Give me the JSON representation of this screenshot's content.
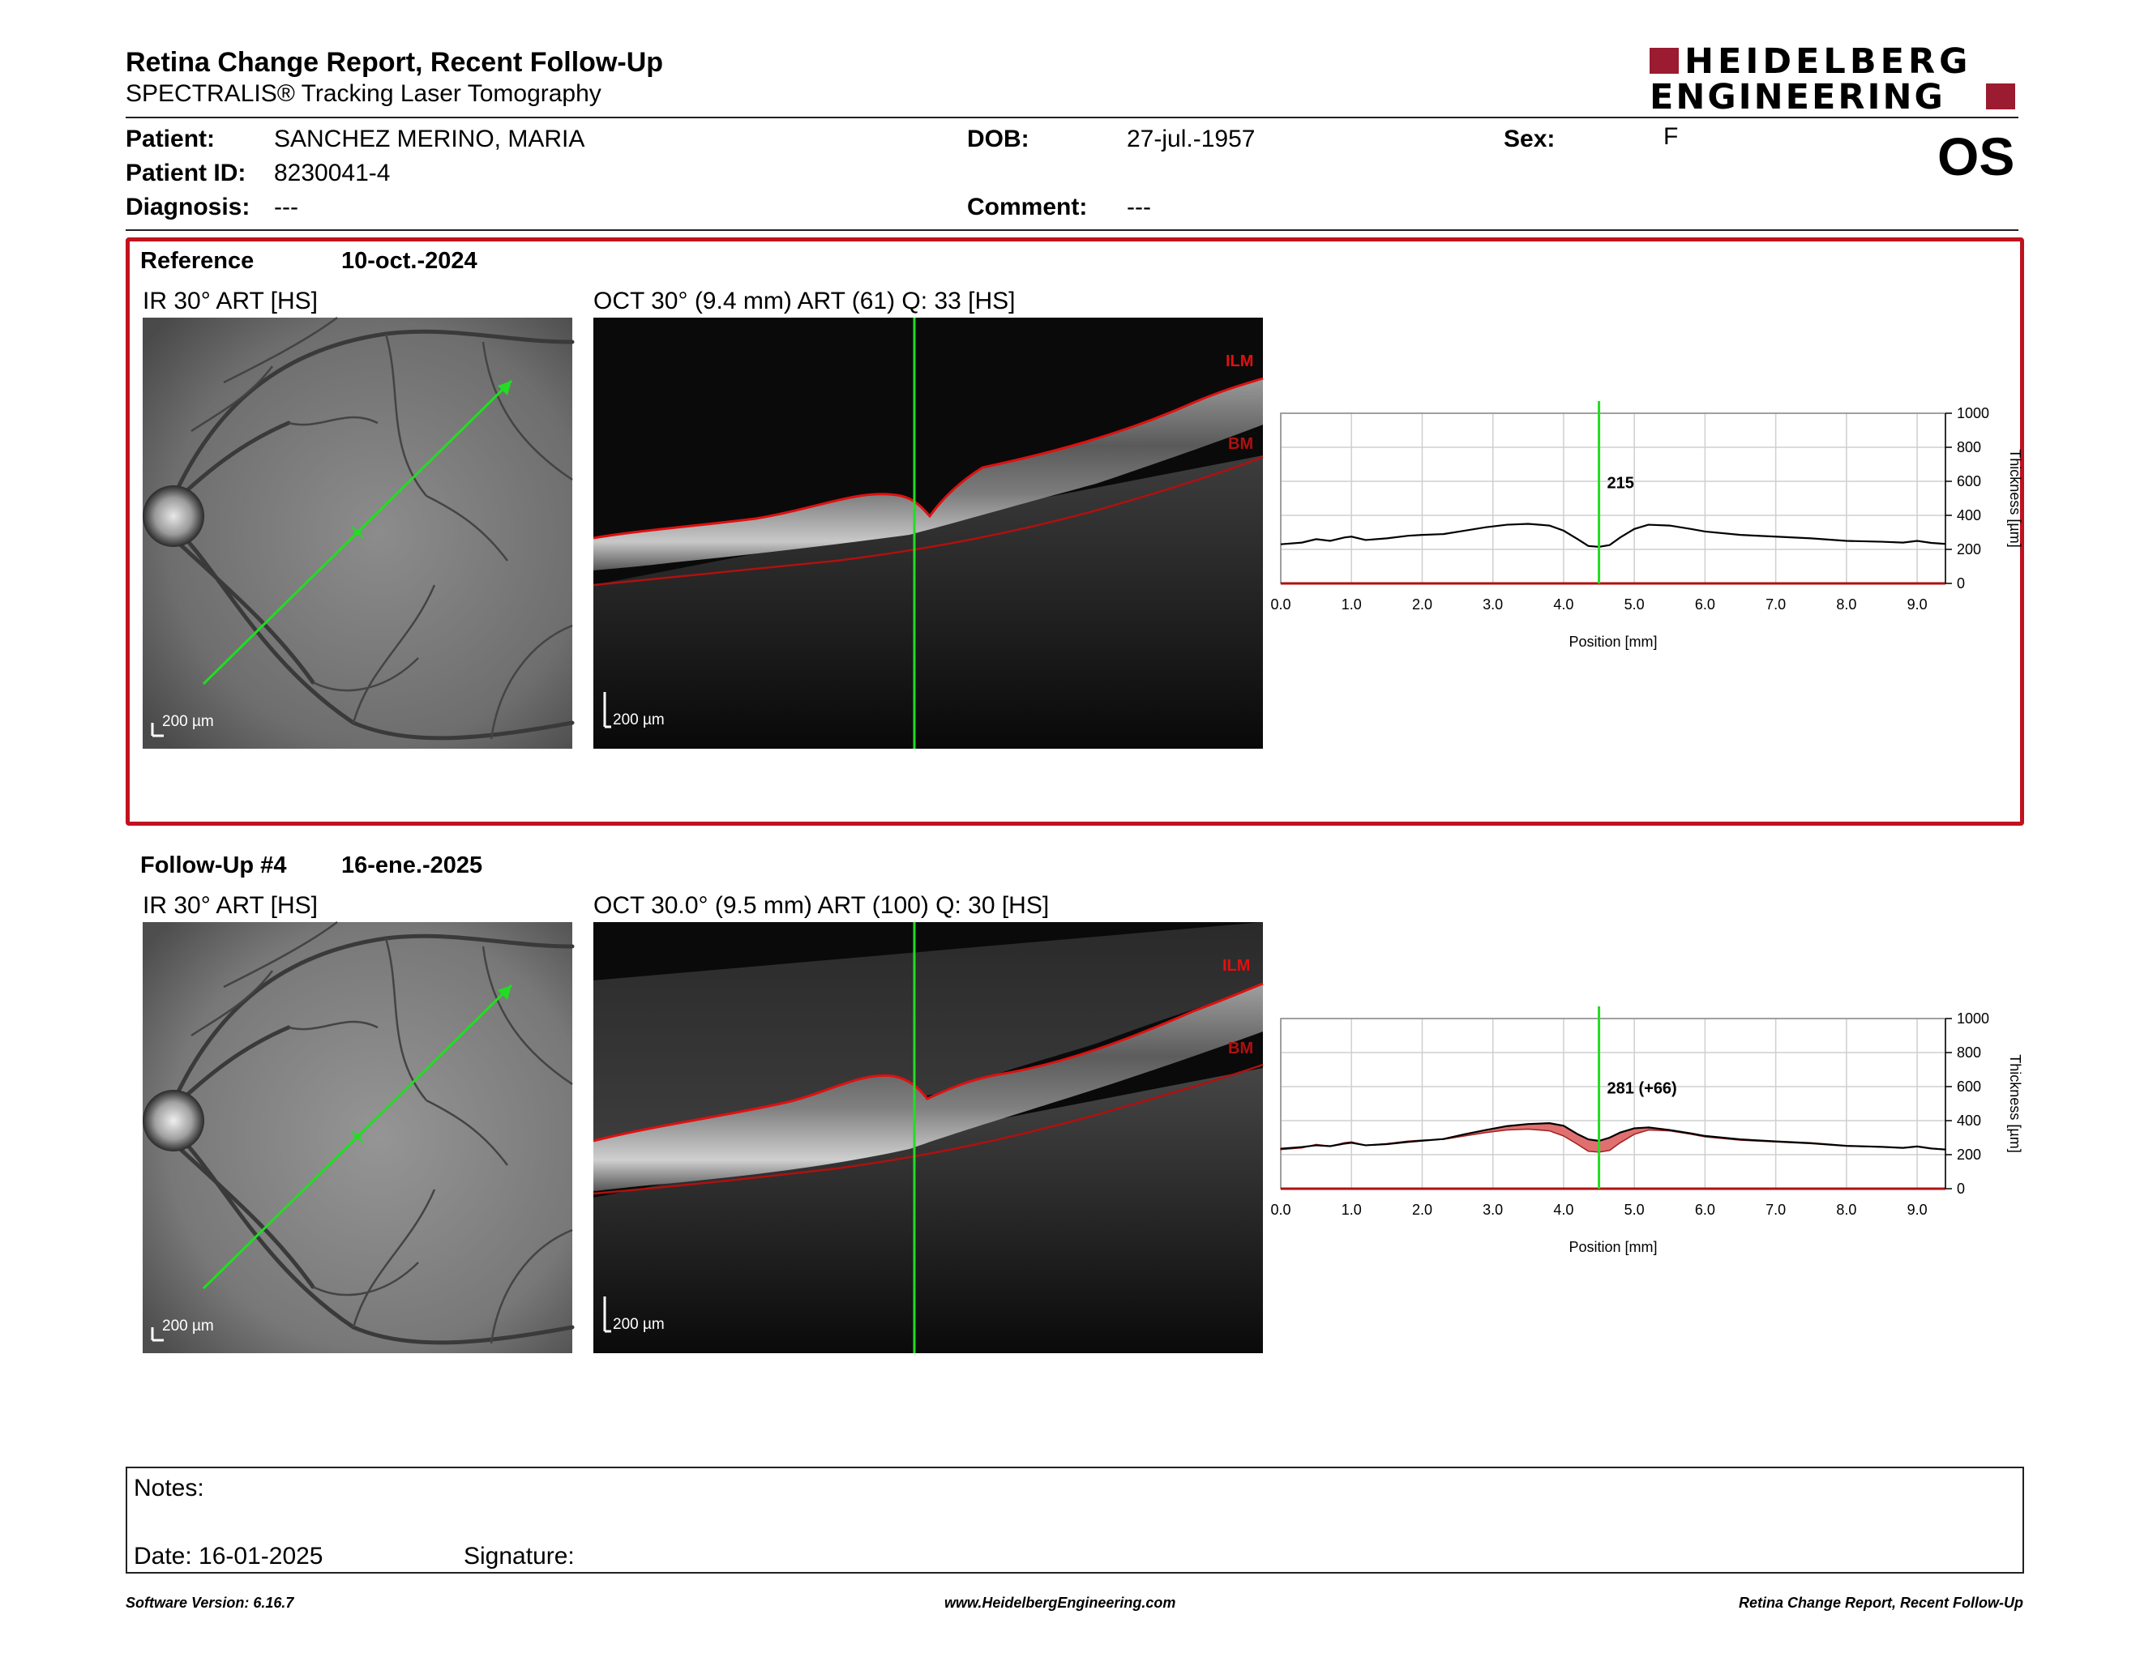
{
  "report": {
    "title": "Retina Change Report, Recent Follow-Up",
    "subtitle": "SPECTRALIS® Tracking Laser Tomography",
    "logo_line1": "HEIDELBERG",
    "logo_line2": "ENGINEERING",
    "eye": "OS"
  },
  "patient": {
    "patient_label": "Patient:",
    "patient_name": "SANCHEZ MERINO, MARIA",
    "id_label": "Patient ID:",
    "id_value": "8230041-4",
    "diagnosis_label": "Diagnosis:",
    "diagnosis_value": "---",
    "dob_label": "DOB:",
    "dob_value": "27-jul.-1957",
    "comment_label": "Comment:",
    "comment_value": "---",
    "sex_label": "Sex:",
    "sex_value": "F"
  },
  "reference": {
    "label": "Reference",
    "date": "10-oct.-2024",
    "ir_title": "IR 30° ART [HS]",
    "oct_title": "OCT 30° (9.4 mm) ART (61) Q: 33 [HS]",
    "ir_scale": "200 µm",
    "oct_scale": "200 µm",
    "ilm": "ILM",
    "bm": "BM"
  },
  "followup": {
    "label": "Follow-Up #4",
    "date": "16-ene.-2025",
    "ir_title": "IR 30° ART [HS]",
    "oct_title": "OCT 30.0° (9.5 mm) ART (100) Q: 30 [HS]",
    "ir_scale": "200 µm",
    "oct_scale": "200 µm",
    "ilm": "ILM",
    "bm": "BM"
  },
  "notes": {
    "notes_label": "Notes:",
    "date_label": "Date: 16-01-2025",
    "signature_label": "Signature:"
  },
  "footer": {
    "software": "Software Version: 6.16.7",
    "website": "www.HeidelbergEngineering.com",
    "report_name": "Retina Change Report, Recent Follow-Up"
  },
  "colors": {
    "brand": "#9b1b30",
    "frame": "#c1121f",
    "ilm_line": "#e01010",
    "bm_line": "#b01010",
    "scan_line": "#22dd22",
    "change_fill": "#e07070"
  },
  "chart_data": [
    {
      "type": "line",
      "name": "reference-thickness",
      "x": [
        0.0,
        0.3,
        0.5,
        0.7,
        0.9,
        1.0,
        1.2,
        1.5,
        1.8,
        2.0,
        2.3,
        2.6,
        2.9,
        3.2,
        3.5,
        3.8,
        4.0,
        4.2,
        4.35,
        4.5,
        4.65,
        4.8,
        5.0,
        5.2,
        5.5,
        5.8,
        6.0,
        6.5,
        7.0,
        7.5,
        8.0,
        8.5,
        8.8,
        9.0,
        9.2,
        9.4
      ],
      "values": [
        230,
        240,
        260,
        250,
        270,
        275,
        255,
        265,
        280,
        285,
        290,
        310,
        330,
        345,
        350,
        340,
        310,
        260,
        220,
        215,
        225,
        270,
        320,
        345,
        340,
        320,
        305,
        285,
        275,
        265,
        250,
        245,
        240,
        250,
        238,
        232
      ],
      "marker_x": 4.5,
      "marker_label": "215",
      "xlabel": "Position [mm]",
      "ylabel": "Thickness [µm]",
      "xlim": [
        0,
        9.4
      ],
      "ylim": [
        0,
        1000
      ],
      "xticks": [
        "0.0",
        "1.0",
        "2.0",
        "3.0",
        "4.0",
        "5.0",
        "6.0",
        "7.0",
        "8.0",
        "9.0"
      ],
      "yticks": [
        "0",
        "200",
        "400",
        "600",
        "800",
        "1000"
      ],
      "grid": true
    },
    {
      "type": "area",
      "name": "followup-thickness",
      "x": [
        0.0,
        0.3,
        0.5,
        0.7,
        0.9,
        1.0,
        1.2,
        1.5,
        1.8,
        2.0,
        2.3,
        2.6,
        2.9,
        3.2,
        3.5,
        3.8,
        4.0,
        4.2,
        4.35,
        4.5,
        4.65,
        4.8,
        5.0,
        5.2,
        5.5,
        5.8,
        6.0,
        6.5,
        7.0,
        7.5,
        8.0,
        8.5,
        8.8,
        9.0,
        9.2,
        9.4
      ],
      "values": [
        235,
        245,
        255,
        250,
        265,
        270,
        255,
        262,
        275,
        282,
        292,
        320,
        345,
        368,
        380,
        385,
        370,
        320,
        290,
        281,
        300,
        330,
        355,
        360,
        345,
        325,
        310,
        290,
        278,
        268,
        252,
        246,
        240,
        248,
        236,
        230
      ],
      "baseline": [
        230,
        240,
        260,
        250,
        270,
        275,
        255,
        265,
        280,
        285,
        290,
        310,
        330,
        345,
        350,
        340,
        310,
        260,
        220,
        215,
        225,
        270,
        320,
        345,
        340,
        320,
        305,
        285,
        275,
        265,
        250,
        245,
        240,
        250,
        238,
        232
      ],
      "marker_x": 4.5,
      "marker_label": "281 (+66)",
      "xlabel": "Position [mm]",
      "ylabel": "Thickness [µm]",
      "xlim": [
        0,
        9.4
      ],
      "ylim": [
        0,
        1000
      ],
      "xticks": [
        "0.0",
        "1.0",
        "2.0",
        "3.0",
        "4.0",
        "5.0",
        "6.0",
        "7.0",
        "8.0",
        "9.0"
      ],
      "yticks": [
        "0",
        "200",
        "400",
        "600",
        "800",
        "1000"
      ],
      "grid": true
    }
  ]
}
